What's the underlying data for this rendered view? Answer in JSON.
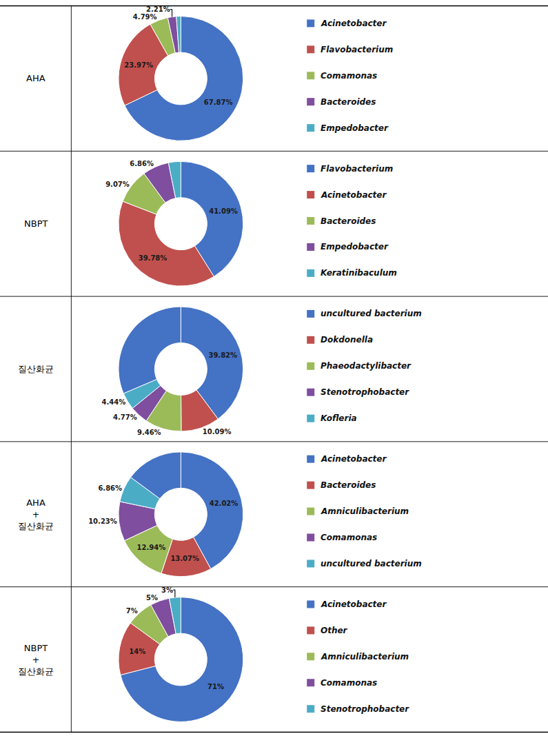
{
  "chart_data": [
    {
      "type": "pie",
      "title": "AHA",
      "categories": [
        "Acinetobacter",
        "Flavobacterium",
        "Comamonas",
        "Bacteroides",
        "Empedobacter"
      ],
      "values": [
        67.87,
        23.97,
        4.79,
        2.21,
        1.16
      ],
      "value_labels": [
        "67.87%",
        "23.97%",
        "4.79%",
        "2.21%",
        null
      ],
      "colors": [
        "#4472C4",
        "#C0504D",
        "#9BBB59",
        "#7F4E9F",
        "#4BACC6"
      ],
      "data_labels": true,
      "legend": "right"
    },
    {
      "type": "pie",
      "title": "NBPT",
      "categories": [
        "Flavobacterium",
        "Acinetobacter",
        "Bacteroides",
        "Empedobacter",
        "Keratinibaculum"
      ],
      "values": [
        41.09,
        39.78,
        9.07,
        6.86,
        3.2
      ],
      "value_labels": [
        "41.09%",
        "39.78%",
        "9.07%",
        "6.86%",
        null
      ],
      "colors": [
        "#4472C4",
        "#C0504D",
        "#9BBB59",
        "#7F4E9F",
        "#4BACC6"
      ],
      "data_labels": true,
      "legend": "right"
    },
    {
      "type": "pie",
      "title": "질산화균",
      "categories": [
        "uncultured bacterium",
        "Dokdonella",
        "Phaeodactylibacter",
        "Stenotrophobacter",
        "Kofleria",
        null
      ],
      "values": [
        39.82,
        10.09,
        9.46,
        4.77,
        4.44,
        31.42
      ],
      "value_labels": [
        "39.82%",
        "10.09%",
        "9.46%",
        "4.77%",
        "4.44%",
        null
      ],
      "colors": [
        "#4472C4",
        "#C0504D",
        "#9BBB59",
        "#7F4E9F",
        "#4BACC6",
        "#4472C4"
      ],
      "data_labels": true,
      "legend": "right"
    },
    {
      "type": "pie",
      "title": "AHA\n+\n질산화균",
      "categories": [
        "Acinetobacter",
        "Bacteroides",
        "Amniculibacterium",
        "Comamonas",
        "uncultured bacterium",
        null
      ],
      "values": [
        42.02,
        13.07,
        12.94,
        10.23,
        6.86,
        14.88
      ],
      "value_labels": [
        "42.02%",
        "13.07%",
        "12.94%",
        "10.23%",
        "6.86%",
        null
      ],
      "colors": [
        "#4472C4",
        "#C0504D",
        "#9BBB59",
        "#7F4E9F",
        "#4BACC6",
        "#4472C4"
      ],
      "data_labels": true,
      "legend": "right"
    },
    {
      "type": "pie",
      "title": "NBPT\n+\n질산화균",
      "categories": [
        "Acinetobacter",
        "Other",
        "Amniculibacterium",
        "Comamonas",
        "Stenotrophobacter"
      ],
      "values": [
        71,
        14,
        7,
        5,
        3
      ],
      "value_labels": [
        "71%",
        "14%",
        "7%",
        "5%",
        "3%"
      ],
      "colors": [
        "#4472C4",
        "#C0504D",
        "#9BBB59",
        "#7F4E9F",
        "#4BACC6"
      ],
      "data_labels": true,
      "legend": "right"
    }
  ]
}
